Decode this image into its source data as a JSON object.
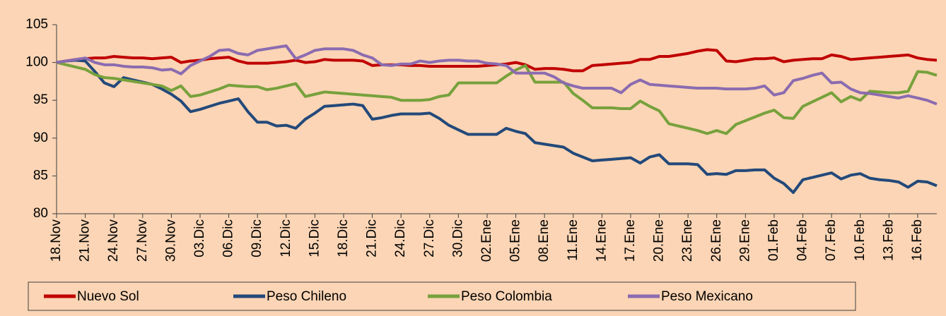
{
  "chart_data": {
    "type": "line",
    "categories": [
      "18.Nov",
      null,
      null,
      "21.Nov",
      null,
      null,
      "24.Nov",
      null,
      null,
      "27.Nov",
      null,
      null,
      "30.Nov",
      null,
      null,
      "03.Dic",
      null,
      null,
      "06.Dic",
      null,
      null,
      "09.Dic",
      null,
      null,
      "12.Dic",
      null,
      null,
      "15.Dic",
      null,
      null,
      "18.Dic",
      null,
      null,
      "21.Dic",
      null,
      null,
      "24.Dic",
      null,
      null,
      "27.Dic",
      null,
      null,
      "30.Dic",
      null,
      null,
      "02.Ene",
      null,
      null,
      "05.Ene",
      null,
      null,
      "08.Ene",
      null,
      null,
      "11.Ene",
      null,
      null,
      "14.Ene",
      null,
      null,
      "17.Ene",
      null,
      null,
      "20.Ene",
      null,
      null,
      "23.Ene",
      null,
      null,
      "26.Ene",
      null,
      null,
      "29.Ene",
      null,
      null,
      "01.Feb",
      null,
      null,
      "04.Feb",
      null,
      null,
      "07.Feb",
      null,
      null,
      "10.Feb",
      null,
      null,
      "13.Feb",
      null,
      null,
      "16.Feb",
      null,
      null
    ],
    "series": [
      {
        "name": "Nuevo Sol",
        "color": "#c00000",
        "values": [
          100,
          100.2,
          100.4,
          100.5,
          100.6,
          100.6,
          100.8,
          100.7,
          100.6,
          100.6,
          100.5,
          100.6,
          100.7,
          100.0,
          100.2,
          100.3,
          100.5,
          100.6,
          100.7,
          100.2,
          99.9,
          99.9,
          99.9,
          100.0,
          100.1,
          100.3,
          100.0,
          100.1,
          100.4,
          100.3,
          100.3,
          100.3,
          100.2,
          99.6,
          99.7,
          99.7,
          99.7,
          99.6,
          99.6,
          99.5,
          99.5,
          99.5,
          99.5,
          99.5,
          99.5,
          99.6,
          99.7,
          99.8,
          100.0,
          99.7,
          99.1,
          99.2,
          99.2,
          99.1,
          98.9,
          98.9,
          99.6,
          99.7,
          99.8,
          99.9,
          100.0,
          100.4,
          100.4,
          100.8,
          100.8,
          101.0,
          101.2,
          101.5,
          101.7,
          101.6,
          100.2,
          100.1,
          100.3,
          100.5,
          100.5,
          100.6,
          100.1,
          100.3,
          100.4,
          100.5,
          100.5,
          101.0,
          100.8,
          100.4,
          100.5,
          100.6,
          100.7,
          100.8,
          100.9,
          101.0,
          100.6,
          100.4,
          100.3
        ]
      },
      {
        "name": "Peso Chileno",
        "color": "#23497a",
        "values": [
          100,
          100.2,
          100.3,
          100.2,
          98.8,
          97.3,
          96.8,
          98.0,
          97.7,
          97.4,
          97.1,
          96.5,
          95.8,
          94.9,
          93.5,
          93.8,
          94.2,
          94.6,
          94.9,
          95.2,
          93.5,
          92.1,
          92.1,
          91.6,
          91.7,
          91.3,
          92.5,
          93.3,
          94.2,
          94.3,
          94.4,
          94.5,
          94.3,
          92.5,
          92.7,
          93.0,
          93.2,
          93.2,
          93.2,
          93.3,
          92.6,
          91.7,
          91.1,
          90.5,
          90.5,
          90.5,
          90.5,
          91.3,
          90.9,
          90.6,
          89.4,
          89.2,
          89.0,
          88.8,
          88.0,
          87.5,
          87.0,
          87.1,
          87.2,
          87.3,
          87.4,
          86.7,
          87.5,
          87.8,
          86.6,
          86.6,
          86.6,
          86.5,
          85.2,
          85.3,
          85.2,
          85.7,
          85.7,
          85.8,
          85.8,
          84.7,
          84.0,
          82.8,
          84.5,
          84.8,
          85.1,
          85.4,
          84.6,
          85.1,
          85.3,
          84.7,
          84.5,
          84.4,
          84.2,
          83.5,
          84.3,
          84.2,
          83.7
        ]
      },
      {
        "name": "Peso Colombia",
        "color": "#77a13c",
        "values": [
          100,
          99.7,
          99.4,
          99.1,
          98.4,
          98.0,
          97.9,
          97.7,
          97.5,
          97.3,
          97.1,
          96.9,
          96.3,
          96.9,
          95.5,
          95.7,
          96.1,
          96.5,
          97.0,
          96.9,
          96.8,
          96.8,
          96.4,
          96.6,
          96.9,
          97.2,
          95.5,
          95.8,
          96.1,
          96.0,
          95.9,
          95.8,
          95.7,
          95.6,
          95.5,
          95.4,
          95.0,
          95.0,
          95.0,
          95.1,
          95.5,
          95.7,
          97.3,
          97.3,
          97.3,
          97.3,
          97.3,
          98.2,
          99.0,
          99.6,
          97.4,
          97.4,
          97.4,
          97.4,
          95.9,
          95.0,
          94.0,
          94.0,
          94.0,
          93.9,
          93.9,
          94.9,
          94.2,
          93.6,
          91.9,
          91.6,
          91.3,
          91.0,
          90.6,
          91.0,
          90.6,
          91.8,
          92.3,
          92.8,
          93.3,
          93.7,
          92.7,
          92.6,
          94.2,
          94.8,
          95.4,
          96.0,
          94.8,
          95.5,
          95.0,
          96.2,
          96.1,
          96.0,
          96.0,
          96.2,
          98.8,
          98.7,
          98.3
        ]
      },
      {
        "name": "Peso Mexicano",
        "color": "#8b6bb0",
        "values": [
          100,
          100.2,
          100.4,
          100.6,
          100.0,
          99.7,
          99.7,
          99.5,
          99.4,
          99.4,
          99.3,
          99.0,
          99.1,
          98.5,
          99.6,
          100.2,
          100.8,
          101.6,
          101.7,
          101.2,
          101.0,
          101.6,
          101.8,
          102.0,
          102.2,
          100.5,
          101.0,
          101.6,
          101.8,
          101.8,
          101.8,
          101.6,
          101.0,
          100.6,
          99.7,
          99.6,
          99.8,
          99.8,
          100.2,
          100.0,
          100.2,
          100.3,
          100.3,
          100.2,
          100.2,
          99.9,
          99.8,
          99.6,
          98.6,
          98.6,
          98.6,
          98.6,
          98.1,
          97.3,
          96.9,
          96.6,
          96.6,
          96.6,
          96.6,
          96.0,
          97.1,
          97.7,
          97.1,
          97.0,
          96.9,
          96.8,
          96.7,
          96.6,
          96.6,
          96.6,
          96.5,
          96.5,
          96.5,
          96.6,
          96.9,
          95.7,
          96.0,
          97.6,
          97.9,
          98.3,
          98.6,
          97.3,
          97.4,
          96.5,
          96.0,
          95.9,
          95.7,
          95.5,
          95.3,
          95.6,
          95.3,
          95.0,
          94.5
        ]
      }
    ],
    "ylim": [
      80,
      105
    ],
    "yticks": [
      80,
      85,
      90,
      95,
      100,
      105
    ],
    "grid": false,
    "legend": "bottom"
  }
}
